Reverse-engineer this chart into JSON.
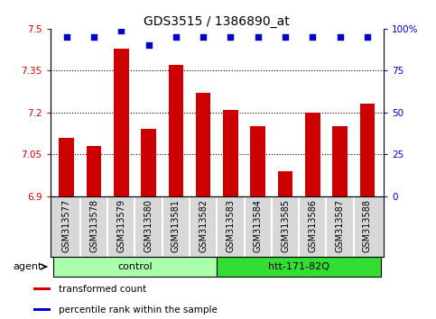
{
  "title": "GDS3515 / 1386890_at",
  "samples": [
    "GSM313577",
    "GSM313578",
    "GSM313579",
    "GSM313580",
    "GSM313581",
    "GSM313582",
    "GSM313583",
    "GSM313584",
    "GSM313585",
    "GSM313586",
    "GSM313587",
    "GSM313588"
  ],
  "bar_values": [
    7.11,
    7.08,
    7.43,
    7.14,
    7.37,
    7.27,
    7.21,
    7.15,
    6.99,
    7.2,
    7.15,
    7.23
  ],
  "percentile_values": [
    95,
    95,
    99,
    90,
    95,
    95,
    95,
    95,
    95,
    95,
    95,
    95
  ],
  "bar_color": "#CC0000",
  "dot_color": "#0000CC",
  "ylim_left": [
    6.9,
    7.5
  ],
  "ylim_right": [
    0,
    100
  ],
  "yticks_left": [
    6.9,
    7.05,
    7.2,
    7.35,
    7.5
  ],
  "ytick_labels_left": [
    "6.9",
    "7.05",
    "7.2",
    "7.35",
    "7.5"
  ],
  "yticks_right": [
    0,
    25,
    50,
    75,
    100
  ],
  "ytick_labels_right": [
    "0",
    "25",
    "50",
    "75",
    "100%"
  ],
  "hlines": [
    7.05,
    7.2,
    7.35
  ],
  "groups": [
    {
      "label": "control",
      "start": 0,
      "end": 5,
      "color": "#aaffaa"
    },
    {
      "label": "htt-171-82Q",
      "start": 6,
      "end": 11,
      "color": "#33dd33"
    }
  ],
  "agent_label": "agent",
  "legend_items": [
    {
      "color": "#CC0000",
      "label": "transformed count"
    },
    {
      "color": "#0000CC",
      "label": "percentile rank within the sample"
    }
  ],
  "bar_width": 0.55,
  "title_fontsize": 10,
  "tick_fontsize": 7.5,
  "label_fontsize": 8,
  "background_color": "#ffffff",
  "plot_bg_color": "#ffffff",
  "tick_label_area_color": "#d8d8d8"
}
